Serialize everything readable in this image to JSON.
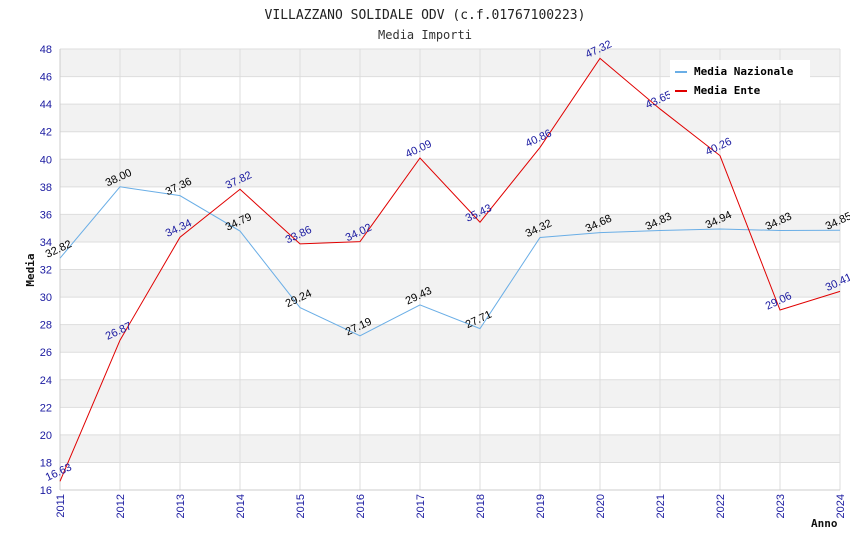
{
  "chart_data": {
    "type": "line",
    "title": "VILLAZZANO SOLIDALE ODV (c.f.01767100223)",
    "subtitle": "Media Importi",
    "xlabel": "Anno",
    "ylabel": "Media",
    "categories": [
      "2011",
      "2012",
      "2013",
      "2014",
      "2015",
      "2016",
      "2017",
      "2018",
      "2019",
      "2020",
      "2021",
      "2022",
      "2023",
      "2024"
    ],
    "ylim": [
      16,
      48
    ],
    "yticks": [
      16,
      18,
      20,
      22,
      24,
      26,
      28,
      30,
      32,
      34,
      36,
      38,
      40,
      42,
      44,
      46,
      48
    ],
    "grid": true,
    "legend_position": "top-right",
    "series": [
      {
        "name": "Media Nazionale",
        "color": "#6aaee6",
        "values": [
          32.82,
          38.0,
          37.36,
          34.79,
          29.24,
          27.19,
          29.43,
          27.71,
          34.32,
          34.68,
          34.83,
          34.94,
          34.83,
          34.85
        ],
        "labels": [
          "32.82",
          "38.00",
          "37.36",
          "34.79",
          "29.24",
          "27.19",
          "29.43",
          "27.71",
          "34.32",
          "34.68",
          "34.83",
          "34.94",
          "34.83",
          "34.85"
        ]
      },
      {
        "name": "Media Ente",
        "color": "#e00000",
        "values": [
          16.63,
          26.87,
          34.34,
          37.82,
          33.86,
          34.02,
          40.09,
          35.43,
          40.86,
          47.32,
          43.65,
          40.26,
          29.06,
          30.41
        ],
        "labels": [
          "16.63",
          "26.87",
          "34.34",
          "37.82",
          "33.86",
          "34.02",
          "40.09",
          "35.43",
          "40.86",
          "47.32",
          "43.65",
          "40.26",
          "29.06",
          "30.41"
        ]
      }
    ]
  }
}
